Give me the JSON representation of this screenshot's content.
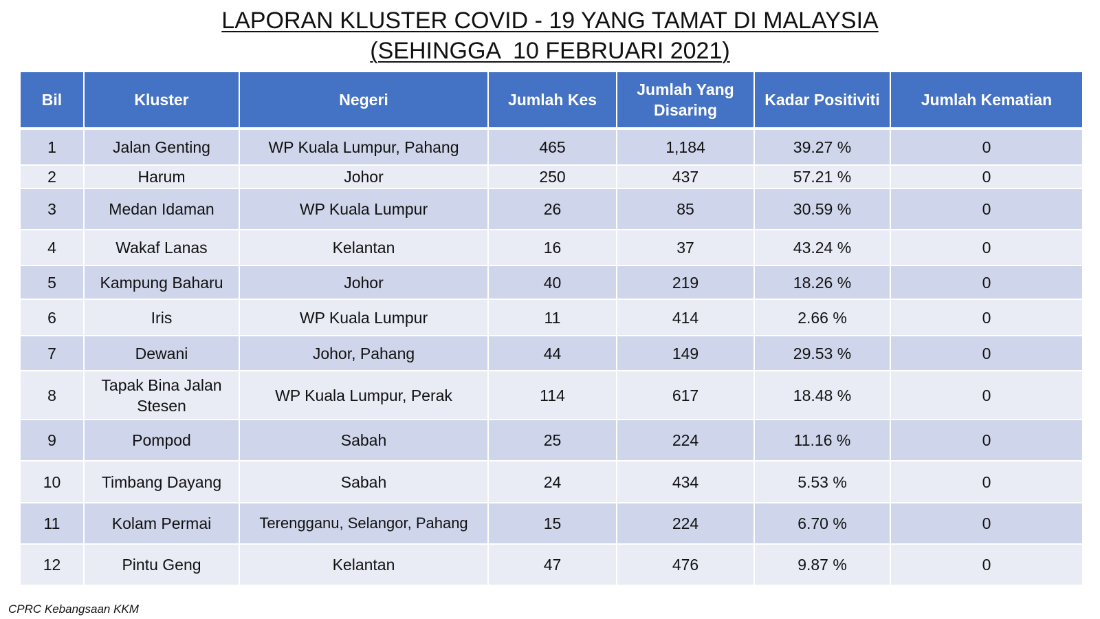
{
  "title": {
    "line1": "LAPORAN KLUSTER COVID - 19 YANG TAMAT DI MALAYSIA",
    "line2": "(SEHINGGA  10 FEBRUARI 2021)"
  },
  "table": {
    "headers": {
      "bil": "Bil",
      "kluster": "Kluster",
      "negeri": "Negeri",
      "jumlah_kes": "Jumlah Kes",
      "jumlah_disaring": "Jumlah Yang Disaring",
      "kadar_positiviti": "Kadar Positiviti",
      "jumlah_kematian": "Jumlah Kematian"
    },
    "rows": [
      {
        "bil": "1",
        "kluster": "Jalan Genting",
        "negeri": "WP Kuala Lumpur, Pahang",
        "kes": "465",
        "disaring": "1,184",
        "positiviti": "39.27 %",
        "kematian": "0"
      },
      {
        "bil": "2",
        "kluster": "Harum",
        "negeri": "Johor",
        "kes": "250",
        "disaring": "437",
        "positiviti": "57.21 %",
        "kematian": "0"
      },
      {
        "bil": "3",
        "kluster": "Medan Idaman",
        "negeri": "WP Kuala Lumpur",
        "kes": "26",
        "disaring": "85",
        "positiviti": "30.59 %",
        "kematian": "0"
      },
      {
        "bil": "4",
        "kluster": "Wakaf Lanas",
        "negeri": "Kelantan",
        "kes": "16",
        "disaring": "37",
        "positiviti": "43.24 %",
        "kematian": "0"
      },
      {
        "bil": "5",
        "kluster": "Kampung Baharu",
        "negeri": "Johor",
        "kes": "40",
        "disaring": "219",
        "positiviti": "18.26 %",
        "kematian": "0"
      },
      {
        "bil": "6",
        "kluster": "Iris",
        "negeri": "WP Kuala Lumpur",
        "kes": "11",
        "disaring": "414",
        "positiviti": "2.66 %",
        "kematian": "0"
      },
      {
        "bil": "7",
        "kluster": "Dewani",
        "negeri": "Johor, Pahang",
        "kes": "44",
        "disaring": "149",
        "positiviti": "29.53 %",
        "kematian": "0"
      },
      {
        "bil": "8",
        "kluster": "Tapak Bina Jalan Stesen",
        "negeri": "WP Kuala Lumpur, Perak",
        "kes": "114",
        "disaring": "617",
        "positiviti": "18.48 %",
        "kematian": "0"
      },
      {
        "bil": "9",
        "kluster": "Pompod",
        "negeri": "Sabah",
        "kes": "25",
        "disaring": "224",
        "positiviti": "11.16 %",
        "kematian": "0"
      },
      {
        "bil": "10",
        "kluster": "Timbang Dayang",
        "negeri": "Sabah",
        "kes": "24",
        "disaring": "434",
        "positiviti": "5.53 %",
        "kematian": "0"
      },
      {
        "bil": "11",
        "kluster": "Kolam Permai",
        "negeri": "Terengganu, Selangor, Pahang",
        "kes": "15",
        "disaring": "224",
        "positiviti": "6.70 %",
        "kematian": "0"
      },
      {
        "bil": "12",
        "kluster": "Pintu Geng",
        "negeri": "Kelantan",
        "kes": "47",
        "disaring": "476",
        "positiviti": "9.87 %",
        "kematian": "0"
      }
    ]
  },
  "footer": {
    "source": "CPRC Kebangsaan KKM"
  },
  "colors": {
    "header_bg": "#4472c4",
    "row_odd": "#cfd5ea",
    "row_even": "#e9ebf5"
  }
}
